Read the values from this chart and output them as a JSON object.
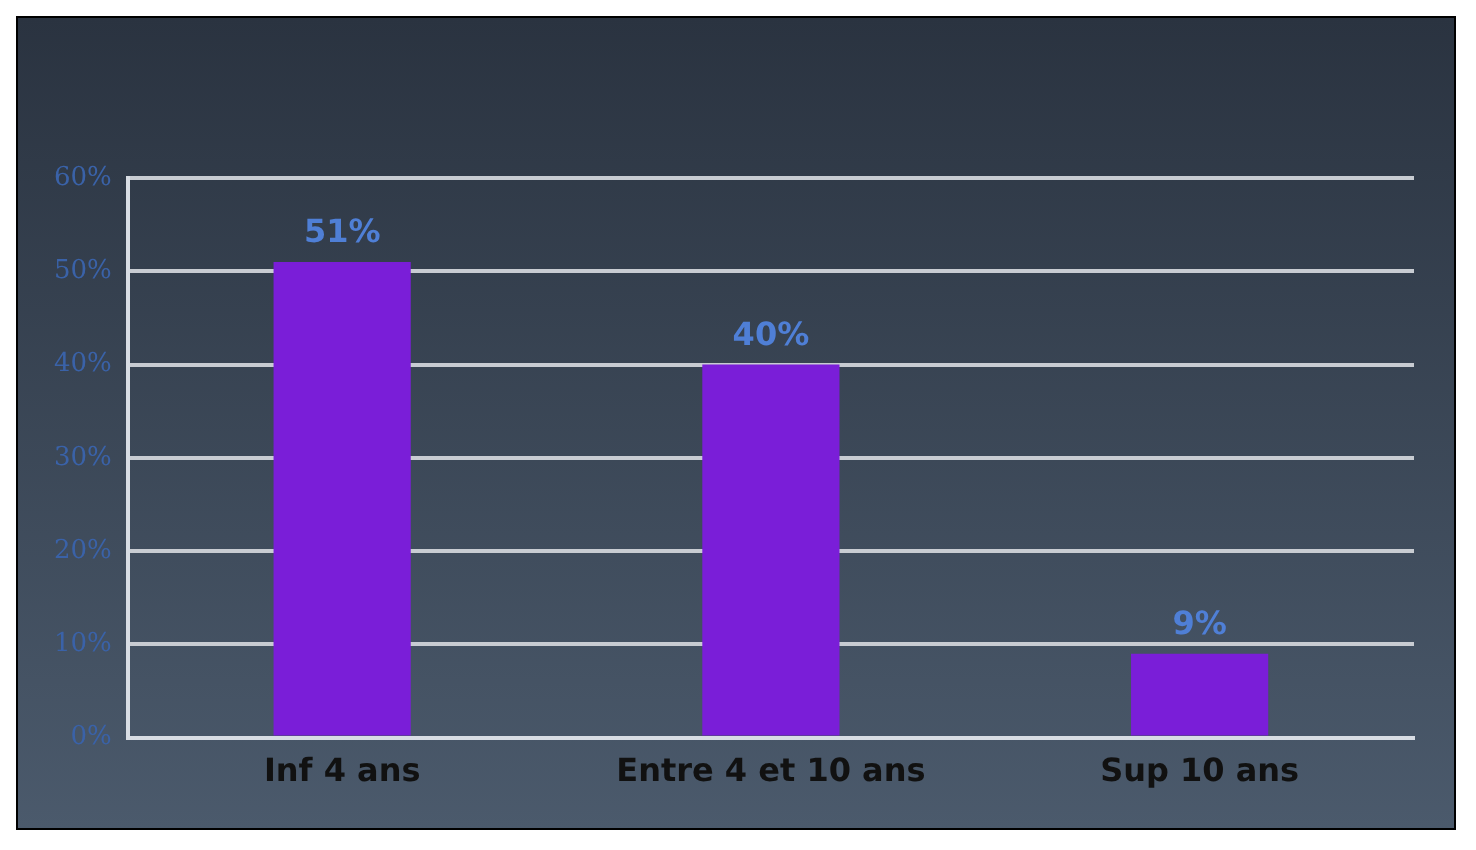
{
  "chart_data": {
    "type": "bar",
    "categories": [
      "Inf 4 ans",
      "Entre 4 et 10 ans",
      "Sup 10 ans"
    ],
    "values": [
      51,
      40,
      9
    ],
    "color": "#7a1ed8",
    "value_labels": [
      "51%",
      "40%",
      "9%"
    ],
    "ylim": [
      0,
      60
    ],
    "yticks": [
      {
        "value": 0,
        "label": "0%"
      },
      {
        "value": 10,
        "label": "10%"
      },
      {
        "value": 20,
        "label": "20%"
      },
      {
        "value": 30,
        "label": "30%"
      },
      {
        "value": 40,
        "label": "40%"
      },
      {
        "value": 50,
        "label": "50%"
      },
      {
        "value": 60,
        "label": "60%"
      }
    ],
    "grid": "y",
    "legend": false
  }
}
